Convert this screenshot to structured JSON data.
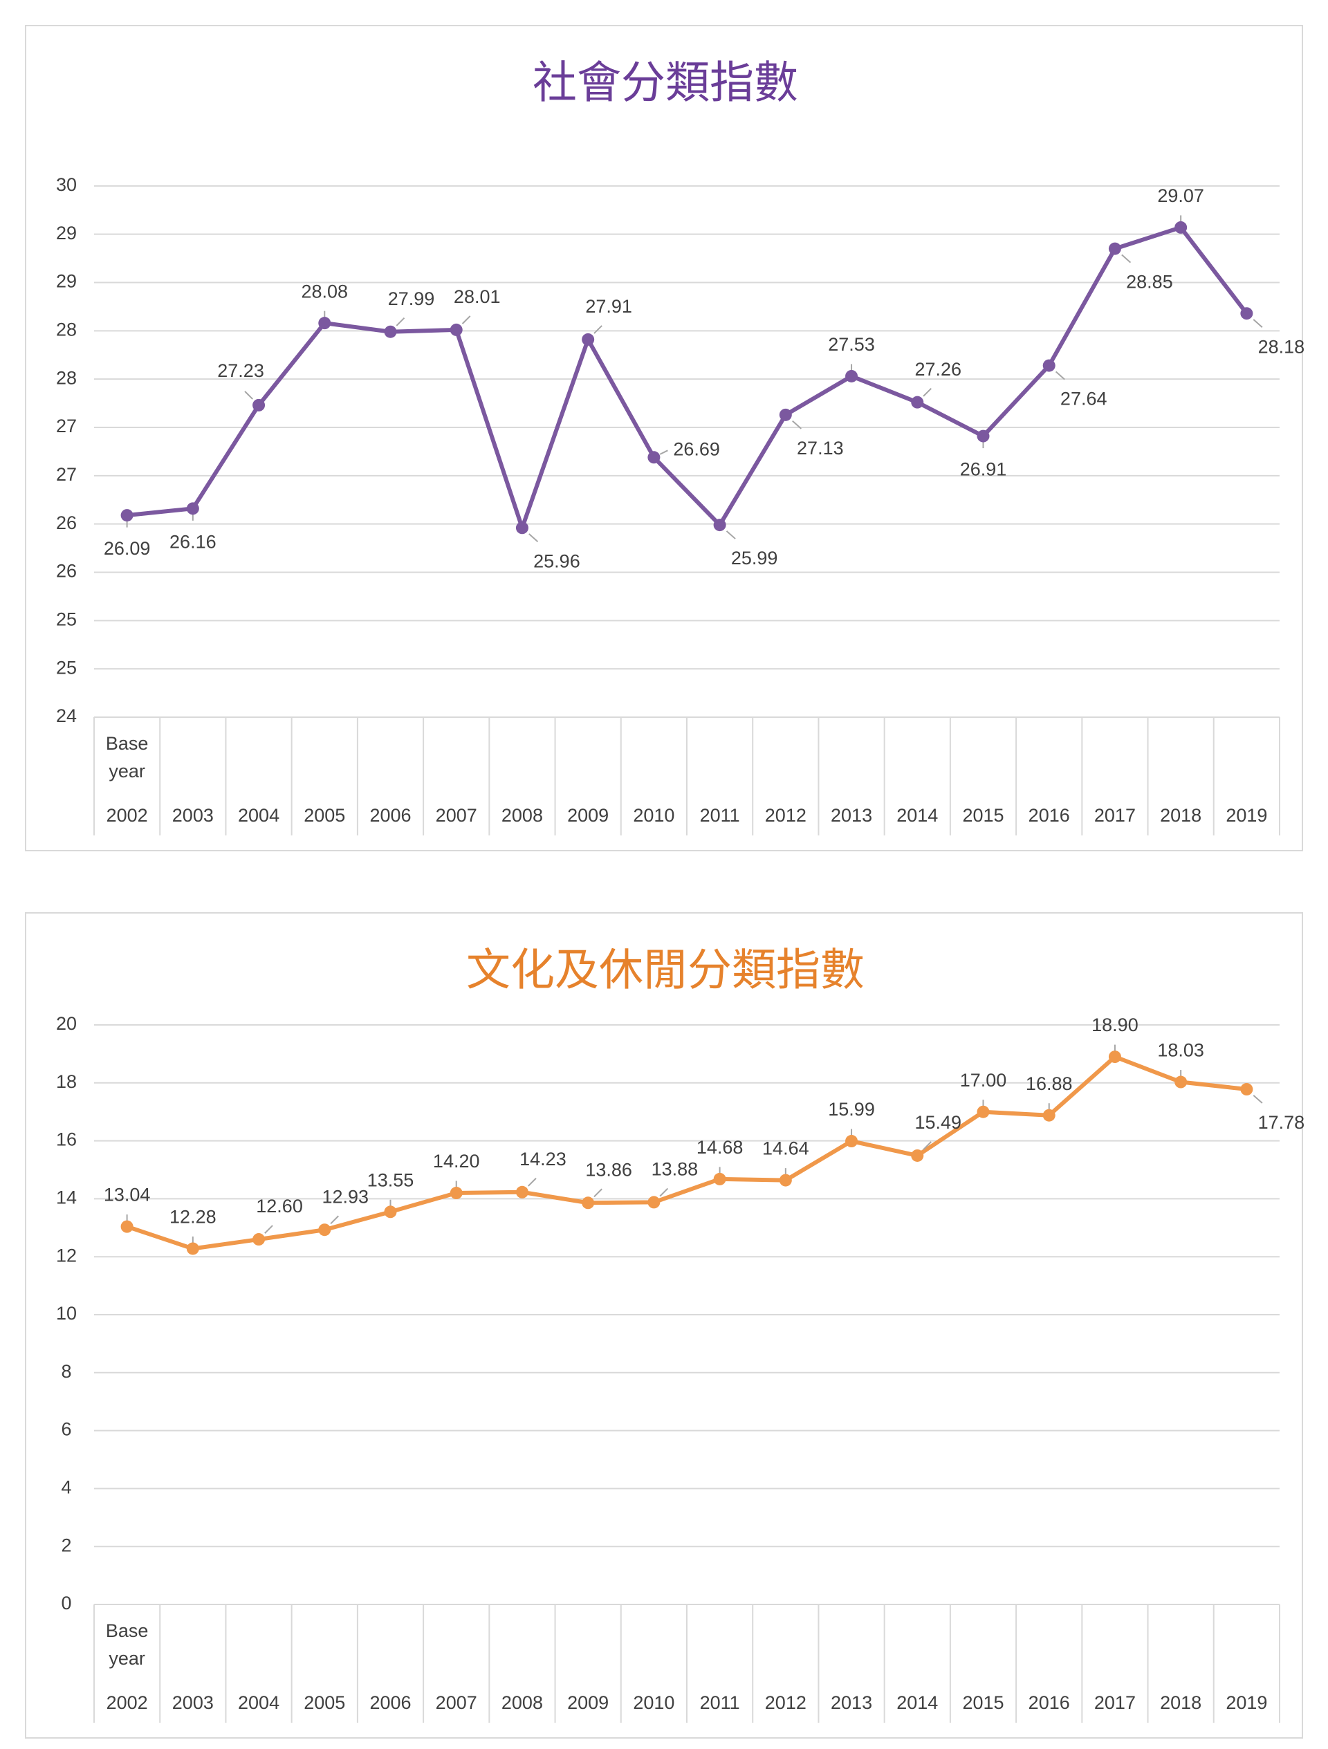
{
  "chart_data": [
    {
      "type": "line",
      "title": "社會分類指數",
      "color": "#7b589f",
      "xlabel": "",
      "ylabel": "",
      "ylim": [
        24,
        30
      ],
      "y_ticks": [
        {
          "value": 24,
          "label": "24"
        },
        {
          "value": 24.5,
          "label": "25"
        },
        {
          "value": 25,
          "label": "25"
        },
        {
          "value": 25.5,
          "label": "26"
        },
        {
          "value": 26,
          "label": "26"
        },
        {
          "value": 26.5,
          "label": "27"
        },
        {
          "value": 27,
          "label": "27"
        },
        {
          "value": 27.5,
          "label": "28"
        },
        {
          "value": 28,
          "label": "28"
        },
        {
          "value": 28.5,
          "label": "29"
        },
        {
          "value": 29,
          "label": "29"
        },
        {
          "value": 29.5,
          "label": "30"
        }
      ],
      "categories": [
        "2002",
        "2003",
        "2004",
        "2005",
        "2006",
        "2007",
        "2008",
        "2009",
        "2010",
        "2011",
        "2012",
        "2013",
        "2014",
        "2015",
        "2016",
        "2017",
        "2018",
        "2019"
      ],
      "base_year_label": [
        "Base",
        "year"
      ],
      "values": [
        26.09,
        26.16,
        27.23,
        28.08,
        27.99,
        28.01,
        25.96,
        27.91,
        26.69,
        25.99,
        27.13,
        27.53,
        27.26,
        26.91,
        27.64,
        28.85,
        29.07,
        28.18
      ],
      "data_labels": [
        "26.09",
        "26.16",
        "27.23",
        "28.08",
        "27.99",
        "28.01",
        "25.96",
        "27.91",
        "26.69",
        "25.99",
        "27.13",
        "27.53",
        "27.26",
        "26.91",
        "27.64",
        "28.85",
        "29.07",
        "28.18"
      ],
      "label_positions": [
        "below",
        "below",
        "above-left",
        "above",
        "above-right",
        "above-right",
        "below-right",
        "above-right",
        "right",
        "below-right",
        "below-right",
        "above",
        "above-right",
        "below",
        "below-right",
        "below-right",
        "above",
        "below-right"
      ]
    },
    {
      "type": "line",
      "title": "文化及休閒分類指數",
      "color": "#f0984a",
      "xlabel": "",
      "ylabel": "",
      "ylim": [
        0,
        20
      ],
      "y_ticks": [
        {
          "value": 0,
          "label": "0"
        },
        {
          "value": 2,
          "label": "2"
        },
        {
          "value": 4,
          "label": "4"
        },
        {
          "value": 6,
          "label": "6"
        },
        {
          "value": 8,
          "label": "8"
        },
        {
          "value": 10,
          "label": "10"
        },
        {
          "value": 12,
          "label": "12"
        },
        {
          "value": 14,
          "label": "14"
        },
        {
          "value": 16,
          "label": "16"
        },
        {
          "value": 18,
          "label": "18"
        },
        {
          "value": 20,
          "label": "20"
        }
      ],
      "categories": [
        "2002",
        "2003",
        "2004",
        "2005",
        "2006",
        "2007",
        "2008",
        "2009",
        "2010",
        "2011",
        "2012",
        "2013",
        "2014",
        "2015",
        "2016",
        "2017",
        "2018",
        "2019"
      ],
      "base_year_label": [
        "Base",
        "year"
      ],
      "values": [
        13.04,
        12.28,
        12.6,
        12.93,
        13.55,
        14.2,
        14.23,
        13.86,
        13.88,
        14.68,
        14.64,
        15.99,
        15.49,
        17.0,
        16.88,
        18.9,
        18.03,
        17.78
      ],
      "data_labels": [
        "13.04",
        "12.28",
        "12.60",
        "12.93",
        "13.55",
        "14.20",
        "14.23",
        "13.86",
        "13.88",
        "14.68",
        "14.64",
        "15.99",
        "15.49",
        "17.00",
        "16.88",
        "18.90",
        "18.03",
        "17.78"
      ],
      "label_positions": [
        "above",
        "above",
        "above-right",
        "above-right",
        "above",
        "above",
        "above-right",
        "above-right",
        "above-right",
        "above",
        "above",
        "above",
        "above-right",
        "above",
        "above",
        "above",
        "above",
        "below-right"
      ]
    }
  ],
  "colors": {
    "title_social": "#6a3d98",
    "title_culture": "#e6822c",
    "gridline": "#d9d9d9",
    "text": "#404040",
    "leader": "#a6a6a6"
  }
}
